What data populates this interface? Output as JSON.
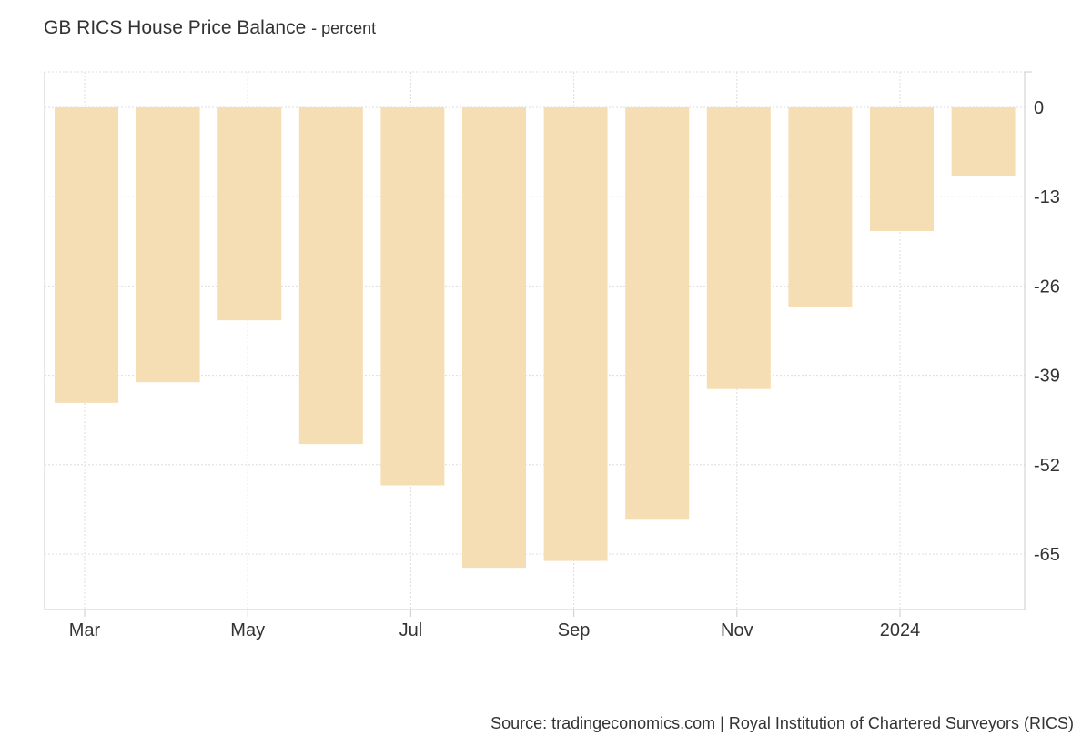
{
  "chart_data": {
    "type": "bar",
    "title": "GB RICS House Price Balance",
    "subtitle": "- percent",
    "categories": [
      "Mar 2023",
      "Apr 2023",
      "May 2023",
      "Jun 2023",
      "Jul 2023",
      "Aug 2023",
      "Sep 2023",
      "Oct 2023",
      "Nov 2023",
      "Dec 2023",
      "Jan 2024",
      "Feb 2024"
    ],
    "values": [
      -43,
      -40,
      -31,
      -49,
      -55,
      -67,
      -66,
      -60,
      -41,
      -29,
      -18,
      -10
    ],
    "x_tick_labels": [
      "Mar",
      "May",
      "Jul",
      "Sep",
      "Nov",
      "2024"
    ],
    "y_ticks": [
      0,
      -13,
      -26,
      -39,
      -52,
      -65
    ],
    "ylim": [
      -73,
      5
    ],
    "grid": true,
    "bar_color": "#F5DEB3",
    "source": "Source: tradingeconomics.com | Royal Institution of Chartered Surveyors (RICS)"
  }
}
